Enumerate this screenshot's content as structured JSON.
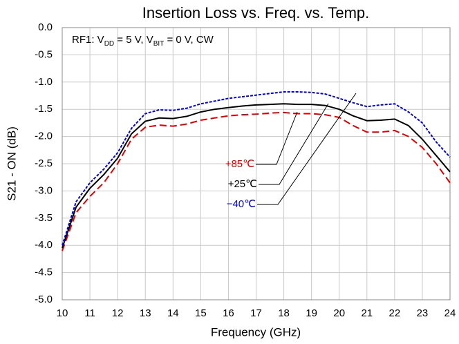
{
  "chart_data": {
    "type": "line",
    "title": "Insertion Loss vs. Freq. vs. Temp.",
    "annotation": [
      "RF1: V",
      "DD",
      " = 5 V, V",
      "BIT",
      " = 0 V, CW"
    ],
    "xlabel": "Frequency (GHz)",
    "ylabel": "S21 - ON (dB)",
    "x": [
      10,
      10.5,
      11,
      11.5,
      12,
      12.5,
      13,
      13.5,
      14,
      14.5,
      15,
      15.5,
      16,
      16.5,
      17,
      17.5,
      18,
      18.5,
      19,
      19.5,
      20,
      20.5,
      21,
      21.5,
      22,
      22.5,
      23,
      23.5,
      24
    ],
    "series": [
      {
        "name": "+85℃",
        "color": "#e00000",
        "dash": "10,5",
        "values": [
          -4.1,
          -3.4,
          -3.1,
          -2.85,
          -2.5,
          -2.05,
          -1.83,
          -1.79,
          -1.81,
          -1.77,
          -1.7,
          -1.66,
          -1.62,
          -1.6,
          -1.59,
          -1.57,
          -1.56,
          -1.58,
          -1.58,
          -1.6,
          -1.65,
          -1.8,
          -1.92,
          -1.92,
          -1.89,
          -2.0,
          -2.2,
          -2.5,
          -2.85
        ]
      },
      {
        "name": "+25℃",
        "color": "#000000",
        "dash": "none",
        "values": [
          -4.05,
          -3.3,
          -2.95,
          -2.7,
          -2.4,
          -1.95,
          -1.72,
          -1.66,
          -1.67,
          -1.63,
          -1.55,
          -1.5,
          -1.47,
          -1.44,
          -1.42,
          -1.41,
          -1.4,
          -1.41,
          -1.41,
          -1.43,
          -1.5,
          -1.62,
          -1.71,
          -1.7,
          -1.68,
          -1.8,
          -2.05,
          -2.35,
          -2.65
        ]
      },
      {
        "name": "−40℃",
        "color": "#0000dd",
        "dash": "4,2",
        "values": [
          -4.0,
          -3.2,
          -2.85,
          -2.6,
          -2.3,
          -1.85,
          -1.58,
          -1.51,
          -1.52,
          -1.48,
          -1.4,
          -1.35,
          -1.3,
          -1.27,
          -1.24,
          -1.21,
          -1.18,
          -1.18,
          -1.19,
          -1.22,
          -1.3,
          -1.38,
          -1.45,
          -1.42,
          -1.4,
          -1.55,
          -1.75,
          -2.1,
          -2.38
        ]
      }
    ],
    "xlim": [
      10,
      24
    ],
    "xticks": [
      10,
      11,
      12,
      13,
      14,
      15,
      16,
      17,
      18,
      19,
      20,
      21,
      22,
      23,
      24
    ],
    "ylim": [
      -5,
      0
    ],
    "yticks": [
      {
        "value": 0,
        "label": "0.0"
      },
      -0.5,
      {
        "value": -1,
        "label": "-1.0"
      },
      -1.5,
      {
        "value": -2,
        "label": "-2.0"
      },
      -2.5,
      {
        "value": -3,
        "label": "-3.0"
      },
      -3.5,
      {
        "value": -4,
        "label": "-4.0"
      },
      -4.5,
      {
        "value": -5,
        "label": "-5.0"
      }
    ],
    "grid": true
  }
}
